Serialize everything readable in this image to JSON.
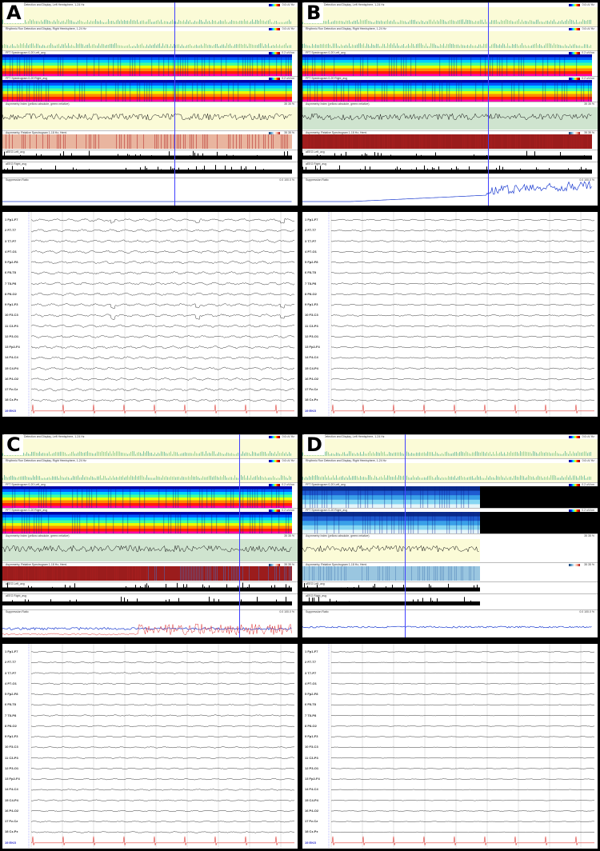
{
  "panels": [
    {
      "label": "A",
      "trend_titles": [
        "Rhythmic Run Detection and Display, Left Hemisphere, 1-24 Hz",
        "Rhythmic Run Detection and Display, Right Hemisphere, 1-24 Hz",
        "FFT Spectrogram 0-20 Left_avg",
        "FFT Spectrogram 0-20 Right_avg",
        "Asymmetry Index (yellow=absolute, green=relative)",
        "Asymmetry, Relative Spectrogram 1-18 Hz, Hemi",
        "aEEG Left_avg",
        "aEEG Right_avg",
        "Suppression Ratio"
      ]
    },
    {
      "label": "B",
      "trend_titles": [
        "Rhythmic Run Detection and Display, Left Hemisphere, 1-24 Hz",
        "Rhythmic Run Detection and Display, Right Hemisphere, 1-24 Hz",
        "FFT Spectrogram 0-20 Left_avg",
        "FFT Spectrogram 0-20 Right_avg",
        "Asymmetry Index (yellow=absolute, green=relative)",
        "Asymmetry, Relative Spectrogram 1-18 Hz, Hemi",
        "aEEG Left_avg",
        "aEEG Right_avg",
        "Suppression Ratio"
      ]
    },
    {
      "label": "C",
      "trend_titles": [
        "Rhythmic Run Detection and Display, Left Hemisphere, 1-24 Hz",
        "Rhythmic Run Detection and Display, Right Hemisphere, 1-24 Hz",
        "FFT Spectrogram 0-20 Left_avg",
        "FFT Spectrogram 0-20 Right_avg",
        "Asymmetry Index (yellow=absolute, green=relative)",
        "Asymmetry, Relative Spectrogram 1-18 Hz, Hemi",
        "aEEG Left_avg",
        "aEEG Right_avg",
        "Suppression Ratio"
      ]
    },
    {
      "label": "D",
      "trend_titles": [
        "Rhythmic Run Detection and Display, Left Hemisphere, 1-24 Hz",
        "Rhythmic Run Detection and Display, Right Hemisphere, 1-24 Hz",
        "FFT Spectrogram 0-20 Left_avg",
        "FFT Spectrogram 0-20 Right_avg",
        "Asymmetry Index (yellow=absolute, green=relative)",
        "Asymmetry, Relative Spectrogram 1-18 Hz, Hemi",
        "aEEG Left_avg",
        "aEEG Right_avg",
        "Suppression Ratio"
      ]
    }
  ],
  "scales": {
    "rhythm": "0.6 uV Hz",
    "fft": "0.2 uV/cm",
    "asym": "35 35 %",
    "relspec": "35 35 %",
    "supp": "0.0 100.0 %"
  },
  "channels": [
    "1 Fp1-F7",
    "2 F7-T7",
    "3 T7-P7",
    "4 P7-O1",
    "5 Fp2-F8",
    "6 F8-T8",
    "7 T8-P8",
    "8 P8-O2",
    "9 Fp1-F3",
    "10 F3-C3",
    "11 C3-P3",
    "12 P3-O1",
    "13 Fp2-F4",
    "14 F4-C4",
    "15 C4-P4",
    "16 P4-O2",
    "17 Fz-Cz",
    "18 Cz-Pz",
    "19 EKG"
  ]
}
